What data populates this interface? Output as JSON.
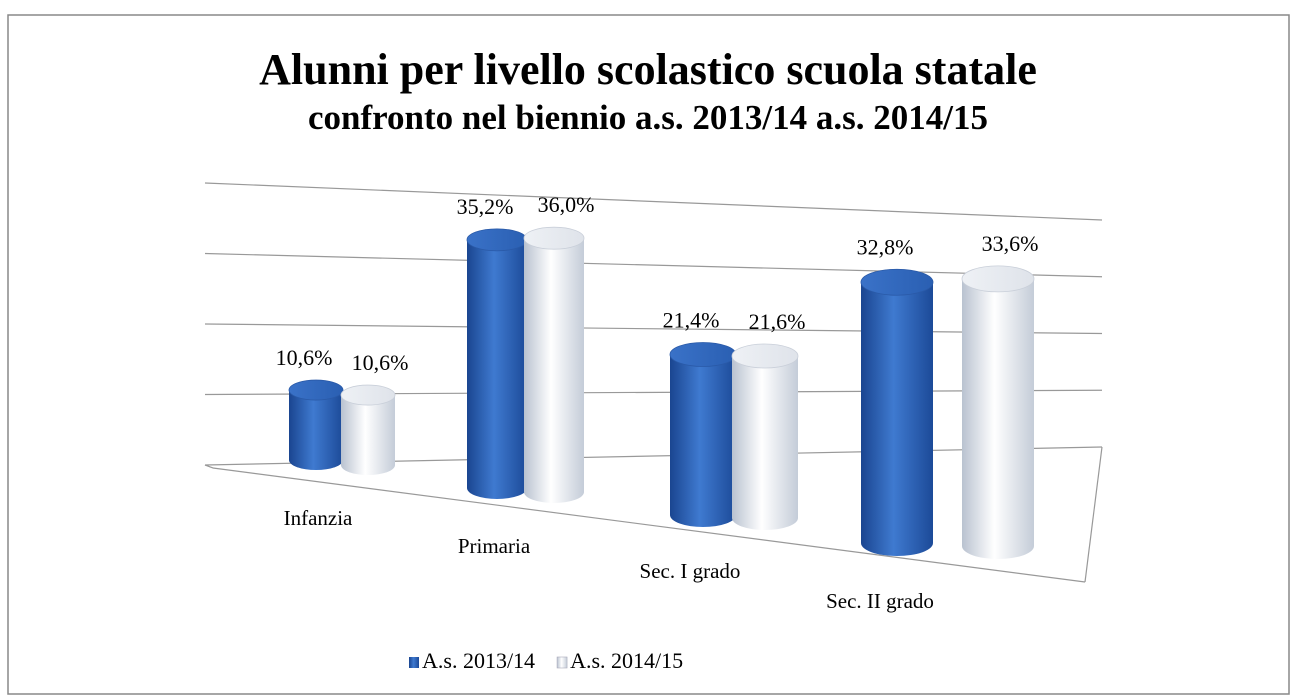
{
  "chart_data": {
    "type": "bar3d",
    "title": "Alunni per livello scolastico scuola statale",
    "subtitle": "confronto nel biennio a.s. 2013/14 a.s. 2014/15",
    "categories": [
      "Infanzia",
      "Primaria",
      "Sec. I grado",
      "Sec. II grado"
    ],
    "series": [
      {
        "name": "A.s. 2013/14",
        "color": "#2b63b8",
        "values": [
          10.6,
          35.2,
          21.4,
          32.8
        ],
        "value_labels": [
          "10,6%",
          "35,2%",
          "21,4%",
          "32,8%"
        ]
      },
      {
        "name": "A.s. 2014/15",
        "color": "#dfe4ec",
        "values": [
          10.6,
          36.0,
          21.6,
          33.6
        ],
        "value_labels": [
          "10,6%",
          "36,0%",
          "21,6%",
          "33,6%"
        ]
      }
    ],
    "ylim": [
      0,
      40
    ],
    "yticks": [
      0,
      10,
      20,
      30,
      40
    ],
    "grid": true,
    "legend": "bottom"
  }
}
